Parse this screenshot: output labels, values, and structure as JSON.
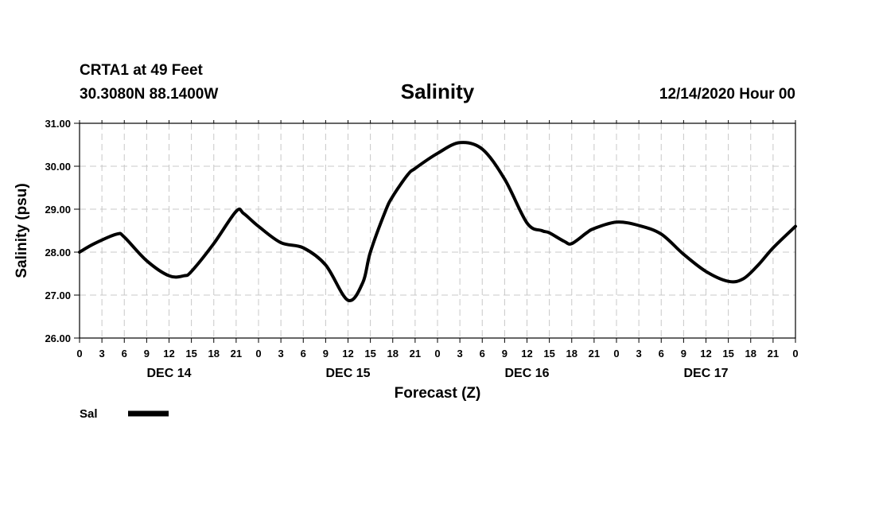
{
  "chart_data": {
    "type": "line",
    "header": {
      "station": "CRTA1 at 49 Feet",
      "location": "30.3080N 88.1400W",
      "title": "Salinity",
      "issued": "12/14/2020 Hour 00"
    },
    "xlabel": "Forecast (Z)",
    "ylabel": "Salinity (psu)",
    "xlim": [
      0,
      96
    ],
    "ylim": [
      26.0,
      31.0
    ],
    "grid": true,
    "legend_position": "bottom-left",
    "y_ticks": [
      "26.00",
      "27.00",
      "28.00",
      "29.00",
      "30.00",
      "31.00"
    ],
    "x_tick_labels": [
      "0",
      "3",
      "6",
      "9",
      "12",
      "15",
      "18",
      "21",
      "0",
      "3",
      "6",
      "9",
      "12",
      "15",
      "18",
      "21",
      "0",
      "3",
      "6",
      "9",
      "12",
      "15",
      "18",
      "21",
      "0",
      "3",
      "6",
      "9",
      "12",
      "15",
      "18",
      "21",
      "0"
    ],
    "day_labels": [
      {
        "label": "DEC 14",
        "hour": 12
      },
      {
        "label": "DEC 15",
        "hour": 36
      },
      {
        "label": "DEC 16",
        "hour": 60
      },
      {
        "label": "DEC 17",
        "hour": 84
      }
    ],
    "series": [
      {
        "name": "Sal",
        "color": "#000000",
        "x": [
          0,
          2,
          5,
          6,
          9,
          12,
          14,
          15,
          18,
          21,
          22,
          24,
          27,
          30,
          33,
          36,
          38,
          39,
          41,
          42,
          44,
          45,
          48,
          51,
          54,
          57,
          60,
          62,
          63,
          65,
          66,
          68,
          69,
          72,
          75,
          78,
          81,
          84,
          87,
          89,
          91,
          93,
          96
        ],
        "y": [
          28.0,
          28.2,
          28.42,
          28.35,
          27.8,
          27.45,
          27.45,
          27.55,
          28.2,
          28.95,
          28.9,
          28.6,
          28.22,
          28.1,
          27.7,
          26.88,
          27.3,
          28.0,
          28.95,
          29.3,
          29.8,
          29.95,
          30.3,
          30.55,
          30.4,
          29.7,
          28.68,
          28.5,
          28.45,
          28.25,
          28.2,
          28.45,
          28.55,
          28.7,
          28.62,
          28.42,
          27.95,
          27.55,
          27.32,
          27.38,
          27.7,
          28.1,
          28.6
        ]
      }
    ]
  }
}
